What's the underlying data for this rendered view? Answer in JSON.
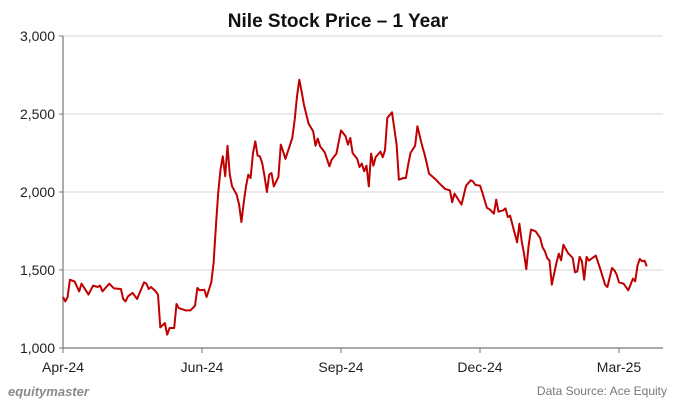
{
  "chart_data": {
    "type": "line",
    "title": "Nile Stock Price – 1 Year",
    "xlabel": "",
    "ylabel": "",
    "ylim": [
      1000,
      3000
    ],
    "xlim": [
      0,
      259
    ],
    "y_ticks": [
      1000,
      1500,
      2000,
      2500,
      3000
    ],
    "y_tick_labels": [
      "1,000",
      "1,500",
      "2,000",
      "2,500",
      "3,000"
    ],
    "x_ticks": [
      {
        "label": "Apr-24",
        "session": 0
      },
      {
        "label": "Jun-24",
        "session": 60
      },
      {
        "label": "Sep-24",
        "session": 120
      },
      {
        "label": "Dec-24",
        "session": 180
      },
      {
        "label": "Mar-25",
        "session": 240
      }
    ],
    "grid": "horizontal",
    "color": "#c00000",
    "series": [
      {
        "points": [
          [
            0,
            1327
          ],
          [
            1,
            1299
          ],
          [
            2,
            1327
          ],
          [
            3,
            1438
          ],
          [
            5,
            1427
          ],
          [
            7,
            1363
          ],
          [
            8,
            1412
          ],
          [
            11,
            1342
          ],
          [
            13,
            1400
          ],
          [
            15,
            1391
          ],
          [
            16,
            1400
          ],
          [
            17,
            1363
          ],
          [
            20,
            1412
          ],
          [
            22,
            1382
          ],
          [
            25,
            1378
          ],
          [
            26,
            1314
          ],
          [
            27,
            1299
          ],
          [
            28,
            1331
          ],
          [
            30,
            1353
          ],
          [
            32,
            1314
          ],
          [
            35,
            1421
          ],
          [
            36,
            1412
          ],
          [
            37,
            1378
          ],
          [
            38,
            1391
          ],
          [
            40,
            1363
          ],
          [
            41,
            1342
          ],
          [
            42,
            1132
          ],
          [
            44,
            1160
          ],
          [
            45,
            1085
          ],
          [
            46,
            1128
          ],
          [
            48,
            1128
          ],
          [
            49,
            1282
          ],
          [
            50,
            1256
          ],
          [
            53,
            1241
          ],
          [
            55,
            1241
          ],
          [
            57,
            1271
          ],
          [
            58,
            1385
          ],
          [
            59,
            1370
          ],
          [
            61,
            1374
          ],
          [
            62,
            1327
          ],
          [
            64,
            1421
          ],
          [
            65,
            1545
          ],
          [
            66,
            1780
          ],
          [
            67,
            1994
          ],
          [
            68,
            2143
          ],
          [
            69,
            2229
          ],
          [
            70,
            2101
          ],
          [
            71,
            2297
          ],
          [
            72,
            2111
          ],
          [
            73,
            2036
          ],
          [
            75,
            1983
          ],
          [
            76,
            1919
          ],
          [
            77,
            1808
          ],
          [
            78,
            1930
          ],
          [
            79,
            2036
          ],
          [
            80,
            2111
          ],
          [
            81,
            2090
          ],
          [
            82,
            2250
          ],
          [
            83,
            2325
          ],
          [
            84,
            2233
          ],
          [
            85,
            2229
          ],
          [
            86,
            2186
          ],
          [
            87,
            2101
          ],
          [
            88,
            2000
          ],
          [
            89,
            2111
          ],
          [
            90,
            2122
          ],
          [
            91,
            2036
          ],
          [
            93,
            2096
          ],
          [
            94,
            2304
          ],
          [
            95,
            2261
          ],
          [
            96,
            2212
          ],
          [
            99,
            2346
          ],
          [
            100,
            2464
          ],
          [
            101,
            2613
          ],
          [
            102,
            2720
          ],
          [
            103,
            2645
          ],
          [
            104,
            2560
          ],
          [
            106,
            2438
          ],
          [
            108,
            2389
          ],
          [
            109,
            2297
          ],
          [
            110,
            2342
          ],
          [
            111,
            2293
          ],
          [
            113,
            2254
          ],
          [
            115,
            2165
          ],
          [
            116,
            2207
          ],
          [
            118,
            2246
          ],
          [
            120,
            2395
          ],
          [
            122,
            2357
          ],
          [
            123,
            2304
          ],
          [
            124,
            2346
          ],
          [
            125,
            2250
          ],
          [
            127,
            2212
          ],
          [
            128,
            2160
          ],
          [
            129,
            2182
          ],
          [
            130,
            2133
          ],
          [
            131,
            2169
          ],
          [
            132,
            2036
          ],
          [
            133,
            2246
          ],
          [
            134,
            2169
          ],
          [
            135,
            2224
          ],
          [
            137,
            2259
          ],
          [
            138,
            2223
          ],
          [
            139,
            2267
          ],
          [
            140,
            2475
          ],
          [
            142,
            2511
          ],
          [
            144,
            2304
          ],
          [
            145,
            2079
          ],
          [
            147,
            2090
          ],
          [
            148,
            2090
          ],
          [
            149,
            2175
          ],
          [
            150,
            2250
          ],
          [
            152,
            2297
          ],
          [
            153,
            2421
          ],
          [
            155,
            2297
          ],
          [
            156,
            2246
          ],
          [
            157,
            2186
          ],
          [
            158,
            2118
          ],
          [
            161,
            2079
          ],
          [
            162,
            2062
          ],
          [
            165,
            2019
          ],
          [
            167,
            2011
          ],
          [
            168,
            1934
          ],
          [
            169,
            1990
          ],
          [
            172,
            1919
          ],
          [
            174,
            2041
          ],
          [
            176,
            2075
          ],
          [
            177,
            2068
          ],
          [
            178,
            2045
          ],
          [
            180,
            2041
          ],
          [
            181,
            1998
          ],
          [
            183,
            1898
          ],
          [
            184,
            1891
          ],
          [
            186,
            1861
          ],
          [
            187,
            1951
          ],
          [
            188,
            1874
          ],
          [
            190,
            1883
          ],
          [
            191,
            1895
          ],
          [
            192,
            1840
          ],
          [
            193,
            1848
          ],
          [
            196,
            1677
          ],
          [
            197,
            1797
          ],
          [
            198,
            1684
          ],
          [
            199,
            1605
          ],
          [
            200,
            1506
          ],
          [
            201,
            1656
          ],
          [
            202,
            1759
          ],
          [
            204,
            1748
          ],
          [
            206,
            1705
          ],
          [
            207,
            1647
          ],
          [
            208,
            1620
          ],
          [
            209,
            1577
          ],
          [
            210,
            1560
          ],
          [
            211,
            1406
          ],
          [
            213,
            1545
          ],
          [
            214,
            1605
          ],
          [
            215,
            1562
          ],
          [
            216,
            1662
          ],
          [
            218,
            1609
          ],
          [
            220,
            1577
          ],
          [
            221,
            1485
          ],
          [
            222,
            1491
          ],
          [
            223,
            1584
          ],
          [
            224,
            1556
          ],
          [
            225,
            1438
          ],
          [
            226,
            1584
          ],
          [
            227,
            1560
          ],
          [
            230,
            1592
          ],
          [
            232,
            1502
          ],
          [
            234,
            1406
          ],
          [
            235,
            1391
          ],
          [
            237,
            1513
          ],
          [
            238,
            1498
          ],
          [
            239,
            1470
          ],
          [
            240,
            1421
          ],
          [
            242,
            1412
          ],
          [
            244,
            1370
          ],
          [
            246,
            1444
          ],
          [
            247,
            1427
          ],
          [
            248,
            1528
          ],
          [
            249,
            1571
          ],
          [
            250,
            1556
          ],
          [
            251,
            1560
          ],
          [
            252,
            1523
          ]
        ]
      }
    ]
  },
  "footer": {
    "logo": "equitymaster",
    "source": "Data Source: Ace Equity"
  }
}
